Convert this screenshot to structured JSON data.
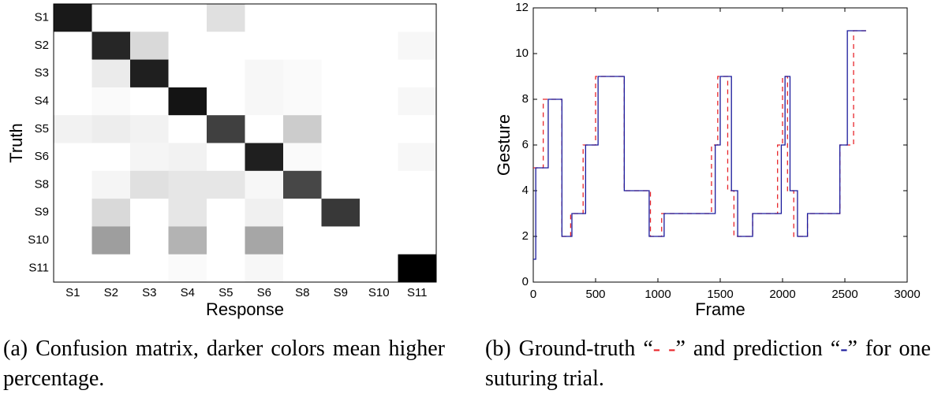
{
  "chart_data": [
    {
      "type": "heatmap",
      "xlabel": "Response",
      "ylabel": "Truth",
      "x_categories": [
        "S1",
        "S2",
        "S3",
        "S4",
        "S5",
        "S6",
        "S8",
        "S9",
        "S10",
        "S11"
      ],
      "y_categories": [
        "S1",
        "S2",
        "S3",
        "S4",
        "S5",
        "S6",
        "S8",
        "S9",
        "S10",
        "S11"
      ],
      "zlim": [
        0,
        100
      ],
      "values": [
        [
          90,
          0,
          0,
          0,
          12,
          0,
          0,
          0,
          0,
          0
        ],
        [
          0,
          85,
          15,
          0,
          0,
          0,
          0,
          0,
          0,
          3
        ],
        [
          0,
          8,
          88,
          0,
          0,
          3,
          2,
          0,
          0,
          0
        ],
        [
          0,
          2,
          0,
          92,
          0,
          3,
          2,
          0,
          0,
          3
        ],
        [
          5,
          7,
          5,
          0,
          75,
          0,
          20,
          0,
          0,
          0
        ],
        [
          0,
          0,
          4,
          5,
          0,
          88,
          2,
          0,
          0,
          3
        ],
        [
          0,
          4,
          12,
          10,
          10,
          3,
          72,
          0,
          0,
          0
        ],
        [
          0,
          15,
          0,
          10,
          0,
          6,
          0,
          78,
          0,
          0
        ],
        [
          0,
          38,
          0,
          30,
          0,
          35,
          0,
          0,
          0,
          0
        ],
        [
          0,
          0,
          0,
          2,
          0,
          3,
          0,
          0,
          0,
          100
        ]
      ],
      "caption": "(a) Confusion matrix, darker colors mean higher percentage."
    },
    {
      "type": "step",
      "xlabel": "Frame",
      "ylabel": "Gesture",
      "xlim": [
        0,
        3000
      ],
      "xticks": [
        0,
        500,
        1000,
        1500,
        2000,
        2500,
        3000
      ],
      "ylim": [
        0,
        12
      ],
      "yticks": [
        0,
        2,
        4,
        6,
        8,
        10,
        12
      ],
      "series": [
        {
          "color": "#e8262b",
          "dash": true,
          "x": [
            0,
            80,
            230,
            300,
            400,
            500,
            730,
            940,
            1030,
            1430,
            1480,
            1560,
            1610,
            1760,
            1960,
            2000,
            2040,
            2090,
            2200,
            2460,
            2570,
            2670
          ],
          "values": [
            5,
            8,
            2,
            3,
            6,
            9,
            4,
            2,
            3,
            6,
            9,
            4,
            2,
            3,
            6,
            9,
            4,
            2,
            3,
            6,
            11,
            11
          ]
        },
        {
          "color": "#1a1a9c",
          "dash": false,
          "x": [
            0,
            20,
            120,
            230,
            310,
            420,
            520,
            730,
            930,
            1050,
            1460,
            1500,
            1590,
            1640,
            1760,
            1990,
            2020,
            2060,
            2120,
            2200,
            2460,
            2520,
            2670
          ],
          "values": [
            1,
            5,
            8,
            2,
            3,
            6,
            9,
            4,
            2,
            3,
            6,
            9,
            4,
            2,
            3,
            6,
            9,
            4,
            2,
            3,
            6,
            11,
            11
          ]
        }
      ],
      "caption": [
        "(b) Ground-truth “",
        "- -",
        "” and prediction “",
        "-",
        "” for one suturing trial."
      ]
    }
  ]
}
